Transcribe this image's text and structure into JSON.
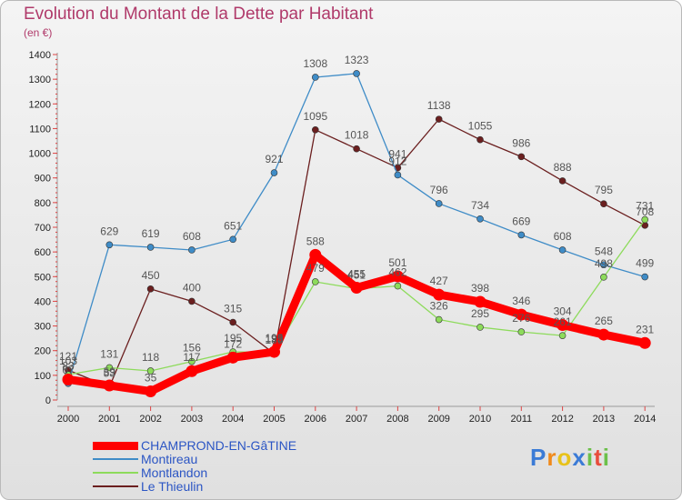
{
  "chart_data": {
    "type": "line",
    "title": "Evolution du Montant de la Dette par Habitant",
    "subtitle": "(en €)",
    "categories": [
      "2000",
      "2001",
      "2002",
      "2003",
      "2004",
      "2005",
      "2006",
      "2007",
      "2008",
      "2009",
      "2010",
      "2011",
      "2012",
      "2013",
      "2014"
    ],
    "ylim": [
      0,
      1400
    ],
    "yticks": [
      0,
      100,
      200,
      300,
      400,
      500,
      600,
      700,
      800,
      900,
      1000,
      1100,
      1200,
      1300,
      1400
    ],
    "grid": false,
    "legend_position": "bottom-left",
    "series": [
      {
        "name": "Le Thieulin",
        "color": "#6b1f1f",
        "values": [
          121,
          53,
          450,
          400,
          315,
          188,
          1095,
          1018,
          941,
          1138,
          1055,
          986,
          888,
          795,
          708
        ]
      },
      {
        "name": "Montireau",
        "color": "#3f8cc7",
        "values": [
          67,
          629,
          619,
          608,
          651,
          921,
          1308,
          1323,
          912,
          796,
          734,
          669,
          608,
          548,
          499
        ]
      },
      {
        "name": "Montlandon",
        "color": "#8ddb5b",
        "values": [
          103,
          131,
          118,
          156,
          195,
          193,
          479,
          451,
          462,
          326,
          295,
          276,
          261,
          498,
          731
        ]
      },
      {
        "name": "CHAMPROND-EN-GâTINE",
        "color": "#ff0000",
        "values": [
          83,
          59,
          35,
          117,
          172,
          195,
          588,
          455,
          501,
          427,
          398,
          346,
          304,
          265,
          231
        ]
      }
    ]
  },
  "legend": {
    "items": [
      {
        "name": "CHAMPROND-EN-GâTINE",
        "color": "#ff0000"
      },
      {
        "name": "Montireau",
        "color": "#3f8cc7"
      },
      {
        "name": "Montlandon",
        "color": "#8ddb5b"
      },
      {
        "name": "Le Thieulin",
        "color": "#6b1f1f"
      }
    ]
  },
  "logo": {
    "letters": [
      "P",
      "r",
      "o",
      "x",
      "i",
      "t",
      "i"
    ],
    "colors": [
      "#3b7bd6",
      "#f08a1c",
      "#e8c21a",
      "#3b7bd6",
      "#6cc04a",
      "#e84d3c",
      "#6cc04a"
    ]
  }
}
